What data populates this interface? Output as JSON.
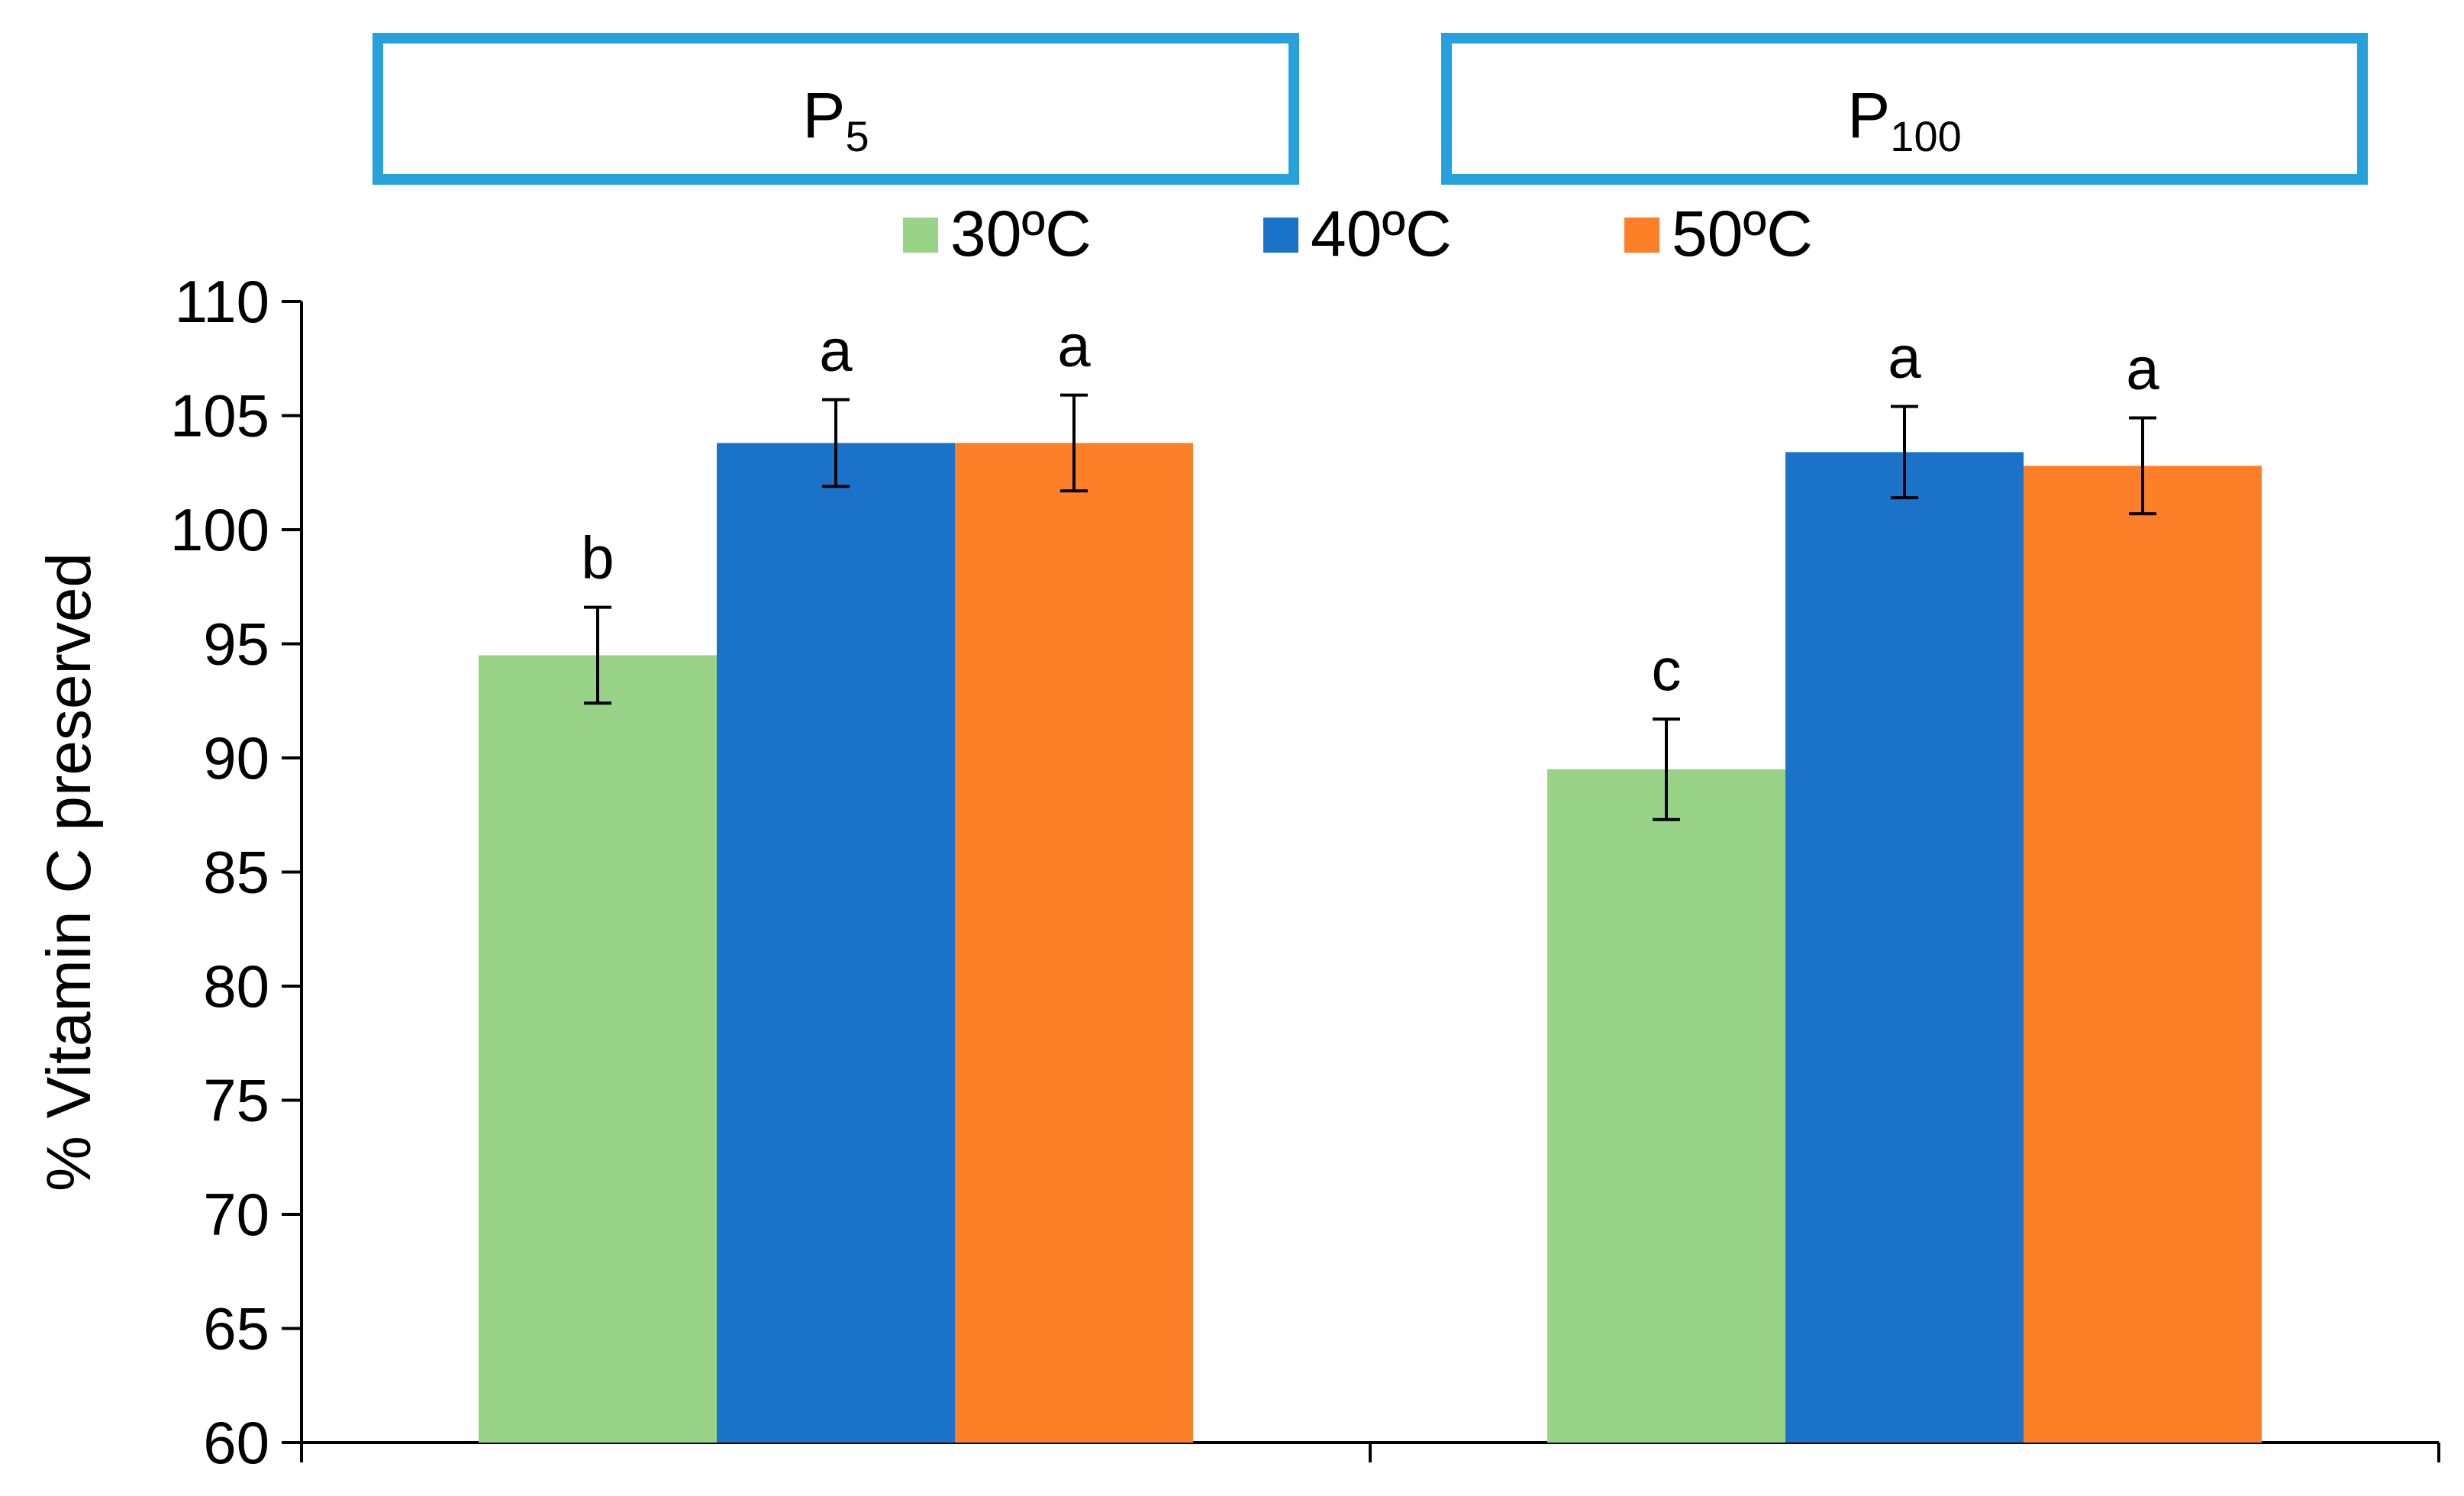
{
  "chart_data": {
    "type": "bar",
    "categories": [
      {
        "main": "P",
        "sub": "5"
      },
      {
        "main": "P",
        "sub": "100"
      }
    ],
    "ylabel": "% Vitamin C preserved",
    "ylim": [
      60,
      110
    ],
    "yticks": [
      60,
      65,
      70,
      75,
      80,
      85,
      90,
      95,
      100,
      105,
      110
    ],
    "legend_position": "top-center",
    "grid": false,
    "series": [
      {
        "name": "30ºC",
        "color": "#98d388",
        "values": [
          94.5,
          89.5
        ],
        "errors": [
          2.1,
          2.2
        ],
        "labels": [
          "b",
          "c"
        ]
      },
      {
        "name": "40ºC",
        "color": "#1a73c8",
        "values": [
          103.8,
          103.4
        ],
        "errors": [
          1.9,
          2.0
        ],
        "labels": [
          "a",
          "a"
        ]
      },
      {
        "name": "50ºC",
        "color": "#fd7f28",
        "values": [
          103.8,
          102.8
        ],
        "errors": [
          2.1,
          2.1
        ],
        "labels": [
          "a",
          "a"
        ]
      }
    ],
    "box_color": "#27a1dc"
  }
}
